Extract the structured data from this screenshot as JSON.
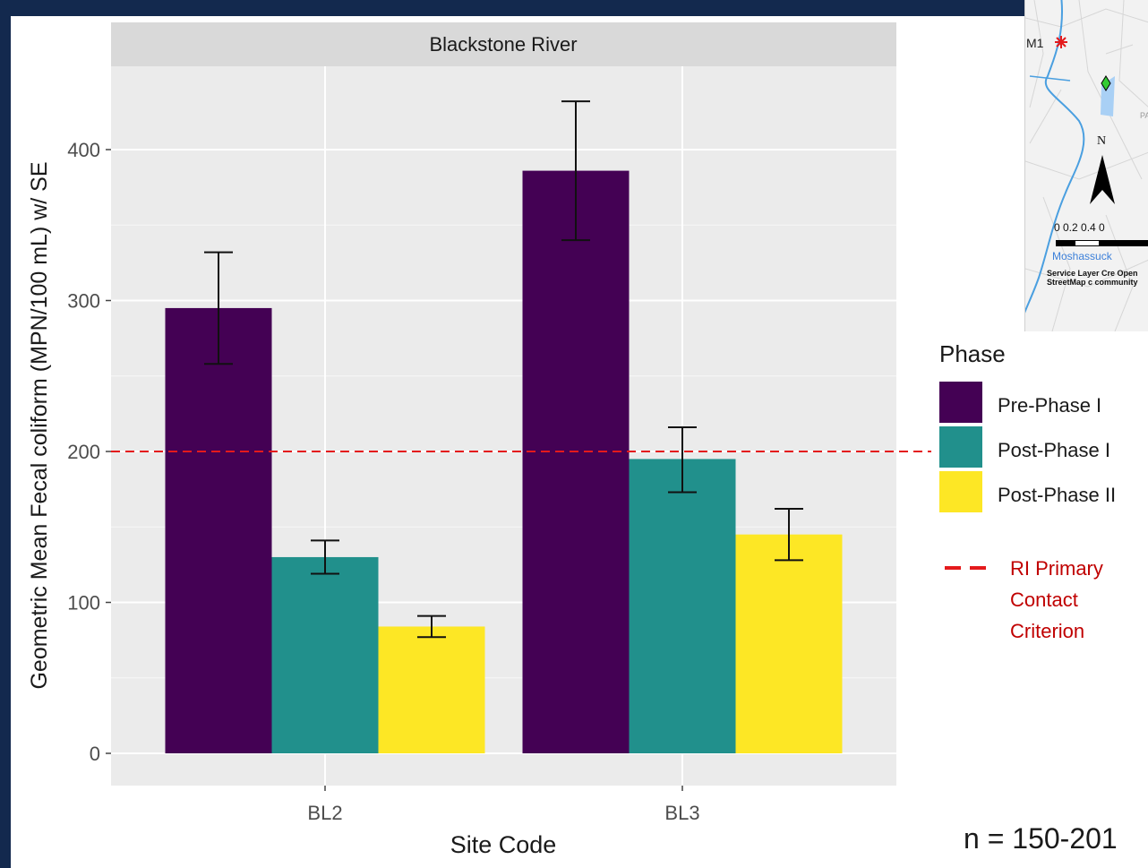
{
  "chart_data": {
    "type": "bar",
    "title": "Blackstone River",
    "xlabel": "Site Code",
    "ylabel": "Geometric Mean Fecal coliform (MPN/100 mL) w/ SE",
    "categories": [
      "BL2",
      "BL3"
    ],
    "series": [
      {
        "name": "Pre-Phase I",
        "color": "#440154",
        "values": [
          295,
          386
        ],
        "se_low": [
          258,
          340
        ],
        "se_high": [
          332,
          432
        ]
      },
      {
        "name": "Post-Phase I",
        "color": "#21908c",
        "values": [
          130,
          195
        ],
        "se_low": [
          119,
          173
        ],
        "se_high": [
          141,
          216
        ]
      },
      {
        "name": "Post-Phase II",
        "color": "#fde725",
        "values": [
          84,
          145
        ],
        "se_low": [
          77,
          128
        ],
        "se_high": [
          91,
          162
        ]
      }
    ],
    "ylim": [
      -20,
      460
    ],
    "yticks": [
      0,
      100,
      200,
      300,
      400
    ],
    "reference_line": {
      "value": 200,
      "label": "RI Primary Contact Criterion",
      "color": "#e41a1c",
      "style": "dashed"
    },
    "legend": {
      "title": "Phase",
      "placement": "right"
    },
    "grid": true
  },
  "note": "n = 150-201",
  "map": {
    "site_label": "M1",
    "north_label": "N",
    "scale_label": "0  0.2 0.4     0",
    "river_label": "Moshassuck",
    "credit_text": "Service Layer Cre Open StreetMap c community",
    "corner_label": "PA"
  }
}
